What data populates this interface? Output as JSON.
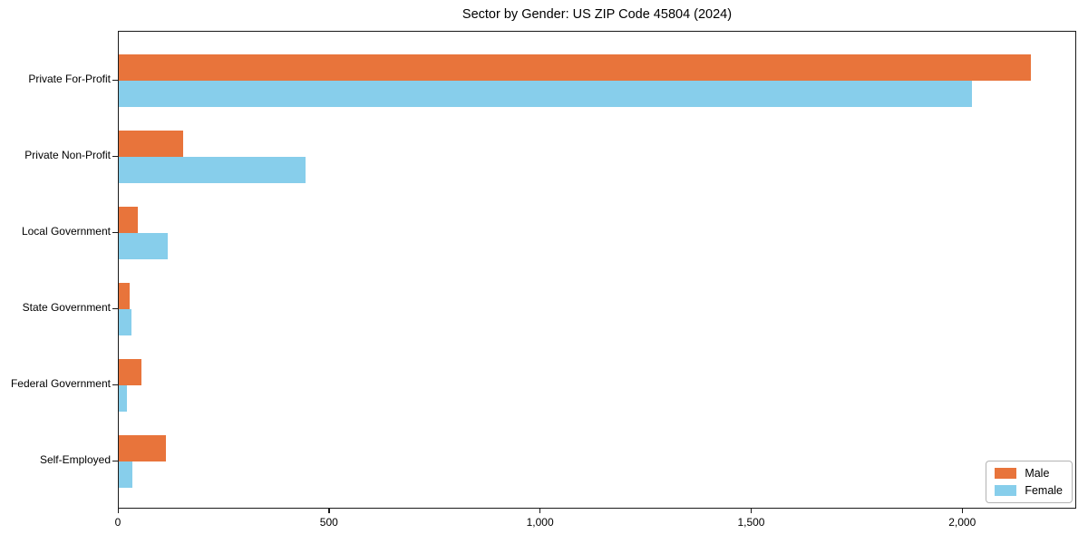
{
  "chart_data": {
    "type": "bar",
    "orientation": "horizontal",
    "title": "Sector by Gender: US ZIP Code 45804 (2024)",
    "categories": [
      "Private For-Profit",
      "Private Non-Profit",
      "Local Government",
      "State Government",
      "Federal Government",
      "Self-Employed"
    ],
    "series": [
      {
        "name": "Male",
        "color": "#e8743b",
        "values": [
          2160,
          152,
          45,
          26,
          54,
          112
        ]
      },
      {
        "name": "Female",
        "color": "#87ceeb",
        "values": [
          2020,
          442,
          116,
          30,
          19,
          32
        ]
      }
    ],
    "xlabel": "",
    "ylabel": "",
    "xlim": [
      0,
      2270
    ],
    "xticks": [
      0,
      500,
      1000,
      1500,
      2000
    ],
    "xtick_labels": [
      "0",
      "500",
      "1,000",
      "1,500",
      "2,000"
    ],
    "grid": false,
    "legend": {
      "position": "lower right",
      "entries": [
        "Male",
        "Female"
      ]
    }
  },
  "colors": {
    "male": "#e8743b",
    "female": "#87ceeb",
    "axis": "#1a1a1a",
    "legend_border": "#b3b3b3"
  }
}
